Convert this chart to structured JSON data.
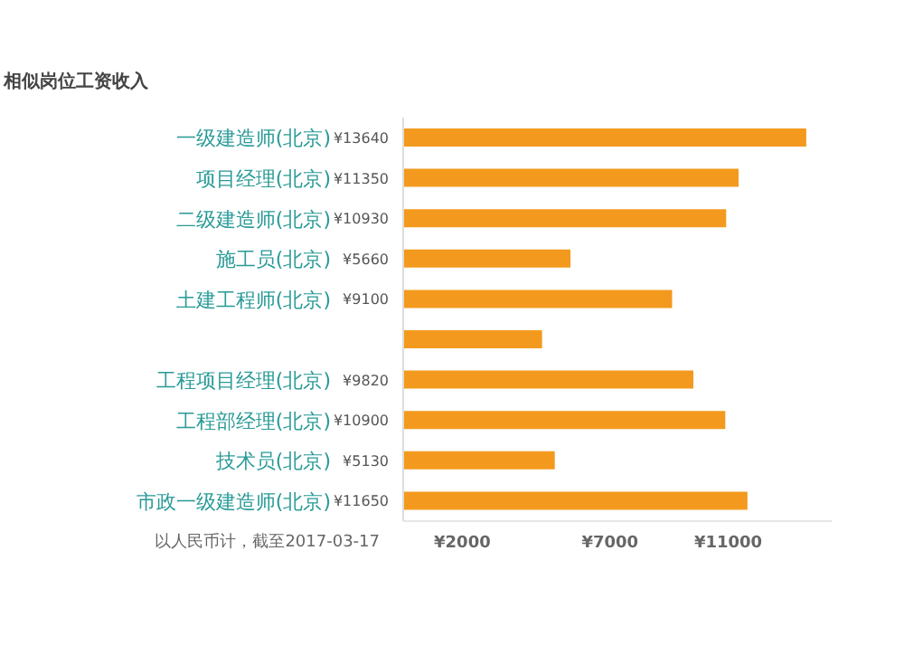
{
  "chart_data": {
    "type": "bar",
    "orientation": "horizontal",
    "title": "相似岗位工资收入",
    "categories": [
      "一级建造师(北京)",
      "项目经理(北京)",
      "二级建造师(北京)",
      "施工员(北京)",
      "土建工程师(北京)",
      null,
      "工程项目经理(北京)",
      "工程部经理(北京)",
      "技术员(北京)",
      "市政一级建造师(北京)"
    ],
    "values": [
      13640,
      11350,
      10930,
      5660,
      9100,
      4700,
      9820,
      10900,
      5130,
      11650
    ],
    "value_labels": [
      "¥13640",
      "¥11350",
      "¥10930",
      "¥5660",
      "¥9100",
      null,
      "¥9820",
      "¥10900",
      "¥5130",
      "¥11650"
    ],
    "color": "#f39a1e",
    "xticks": [
      {
        "value": 2000,
        "label": "¥2000"
      },
      {
        "value": 7000,
        "label": "¥7000"
      },
      {
        "value": 11000,
        "label": "¥11000"
      }
    ],
    "xlim": [
      0,
      14500
    ],
    "annotations": [
      "以人民币计，截至2017-03-17"
    ],
    "grid": false,
    "legend": false
  }
}
